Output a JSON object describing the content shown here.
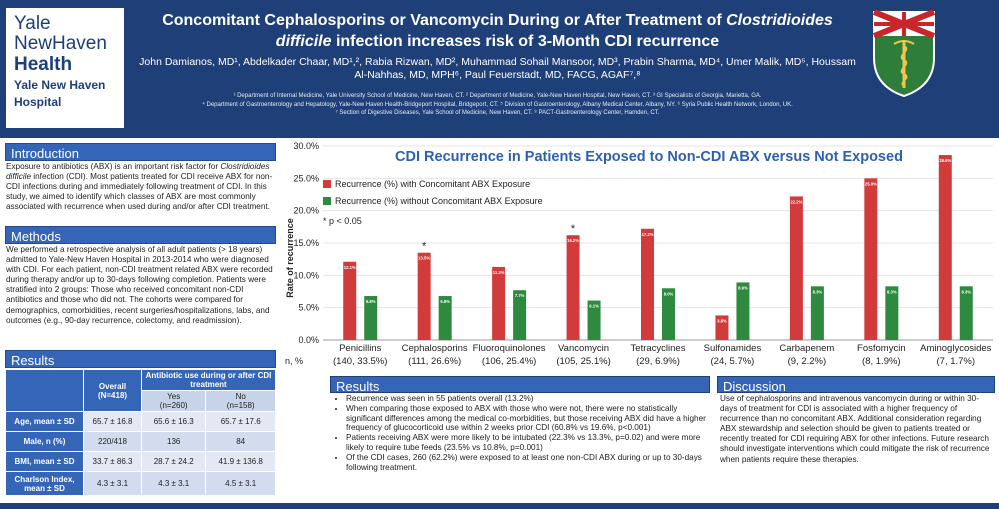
{
  "header": {
    "logo": {
      "line1": "Yale",
      "line2": "NewHaven",
      "line3": "Health",
      "line4": "Yale New Haven",
      "line5": "Hospital"
    },
    "title_pre": "Concomitant Cephalosporins or Vancomycin During or After Treatment of ",
    "title_italic": "Clostridioides difficile",
    "title_post": " infection increases risk of 3-Month CDI recurrence",
    "authors": "John Damianos, MD¹, Abdelkader Chaar, MD¹,², Rabia Rizwan, MD², Muhammad Sohail Mansoor, MD³, Prabin Sharma, MD⁴, Umer Malik, MD⁵, Houssam Al-Nahhas, MD, MPH⁶, Paul Feuerstadt, MD, FACG, AGAF⁷,⁸",
    "affiliations": [
      "¹ Department of Internal Medicine, Yale University School of Medicine, New Haven, CT. ² Department of Medicine, Yale-New Haven Hospital, New Haven, CT. ³ GI Specialists of Georgia, Marietta, GA.",
      "⁴ Department of Gastroenterology and Hepatology, Yale-New Haven Health-Bridgeport Hospital, Bridgeport, CT. ⁵ Division of Gastroenterology, Albany Medical Center, Albany, NY. ⁶ Syria Public Health Network, London, UK.",
      "⁷ Section of Digestive Diseases, Yale School of Medicine, New Haven, CT. ⁸ PACT-Gastroenterology Center, Hamden, CT."
    ]
  },
  "introduction": {
    "heading": "Introduction",
    "text_pre": "Exposure to antibiotics (ABX) is an important risk factor for ",
    "text_italic": "Clostridioides difficile",
    "text_post": " infection (CDI). Most patients treated for CDI receive ABX for non-CDI infections during and immediately following treatment of CDI. In this study, we aimed to identify which classes of ABX are most commonly associated with recurrence when used during and/or after CDI treatment."
  },
  "methods": {
    "heading": "Methods",
    "text": "We performed a retrospective analysis of all adult patients (> 18 years) admitted to Yale-New Haven Hospital in 2013-2014 who were diagnosed with CDI. For each patient, non-CDI treatment related ABX were recorded during therapy and/or up to 30-days following completion. Patients were stratified into 2 groups: Those who received concomitant non-CDI antibiotics and those who did not. The cohorts were compared for demographics, comorbidities, recent surgeries/hospitalizations, labs, and outcomes (e.g., 90-day recurrence, colectomy, and readmission)."
  },
  "results_table": {
    "heading": "Results",
    "col_overall": "Overall",
    "col_overall_n": "(N=418)",
    "col_group": "Antibiotic use during or after CDI treatment",
    "col_yes": "Yes",
    "col_yes_n": "(n=260)",
    "col_no": "No",
    "col_no_n": "(n=158)",
    "rows": [
      {
        "label": "Age, mean ± SD",
        "overall": "65.7 ± 16.8",
        "yes": "65.6 ± 16.3",
        "no": "65.7 ± 17.6"
      },
      {
        "label": "Male, n (%)",
        "overall": "220/418",
        "yes": "136",
        "no": "84"
      },
      {
        "label": "BMI, mean ± SD",
        "overall": "33.7 ± 86.3",
        "yes": "28.7 ± 24.2",
        "no": "41.9 ± 136.8"
      },
      {
        "label": "Charlson Index, mean ± SD",
        "overall": "4.3 ± 3.1",
        "yes": "4.3 ± 3.1",
        "no": "4.5 ± 3.1"
      }
    ]
  },
  "results_bullets": {
    "heading": "Results",
    "items": [
      "Recurrence was seen in 55 patients overall (13.2%)",
      "When comparing those exposed to ABX with those who were not, there were no statistically significant differences among the medical co-morbidities, but those receiving ABX did have a higher frequency of glucocorticoid use within 2 weeks prior CDI (60.8% vs 19.6%, p<0.001)",
      "Patients receiving ABX were more likely to be intubated (22.3% vs 13.3%, p=0.02) and were more likely to require tube feeds (23.5% vs 10.8%, p=0.001)",
      "Of the CDI cases, 260 (62.2%) were exposed to at least one non-CDI ABX during or up to 30-days following treatment."
    ]
  },
  "discussion": {
    "heading": "Discussion",
    "text": "Use of cephalosporins and intravenous vancomycin during or within 30-days of treatment for CDI is associated with a higher frequency of recurrence than no concomitant ABX. Additional consideration regarding ABX stewardship and selection should be given to patients treated or recently treated for CDI requiring ABX for other infections. Future research should investigate interventions which could mitigate the risk of recurrence when patients require these therapies."
  },
  "chart_data": {
    "type": "bar",
    "title": "CDI Recurrence in Patients Exposed to Non-CDI ABX versus Not Exposed",
    "ylabel": "Rate of recurrence",
    "xlabel": "n, %",
    "ylim": [
      0,
      30
    ],
    "yticks": [
      "0.0%",
      "5.0%",
      "10.0%",
      "15.0%",
      "20.0%",
      "25.0%",
      "30.0%"
    ],
    "significance_note": "* p < 0.05",
    "categories": [
      "Penicillins",
      "Cephalosporins",
      "Fluoroquinolones",
      "Vancomycin",
      "Tetracyclines",
      "Sulfonamides",
      "Carbapenem",
      "Fosfomycin",
      "Aminoglycosides"
    ],
    "category_n": [
      "(140, 33.5%)",
      "(111, 26.6%)",
      "(106, 25.4%)",
      "(105, 25.1%)",
      "(29, 6.9%)",
      "(24, 5.7%)",
      "(9, 2.2%)",
      "(8, 1.9%)",
      "(7, 1.7%)"
    ],
    "significant": [
      false,
      true,
      false,
      true,
      false,
      false,
      false,
      false,
      false
    ],
    "series": [
      {
        "name": "Recurrence (%) with Concomitant ABX Exposure",
        "color": "#d13b3b",
        "values": [
          12.1,
          13.5,
          11.3,
          16.2,
          17.2,
          3.8,
          22.2,
          25.0,
          28.6
        ],
        "labels": [
          "12.1%",
          "13.5%",
          "11.3%",
          "16.2%",
          "17.2%",
          "3.8%",
          "22.2%",
          "25.0%",
          "28.6%"
        ]
      },
      {
        "name": "Recurrence (%) without Concomitant ABX Exposure",
        "color": "#2e8a3e",
        "values": [
          6.8,
          6.8,
          7.7,
          6.1,
          8.0,
          8.9,
          8.3,
          8.3,
          8.3
        ],
        "labels": [
          "6.8%",
          "6.8%",
          "7.7%",
          "6.1%",
          "8.0%",
          "8.9%",
          "8.3%",
          "8.3%",
          "8.3%"
        ]
      }
    ]
  },
  "colors": {
    "header": "#1e3f78",
    "section": "#3565b7",
    "chart_title": "#2f5fb0"
  }
}
